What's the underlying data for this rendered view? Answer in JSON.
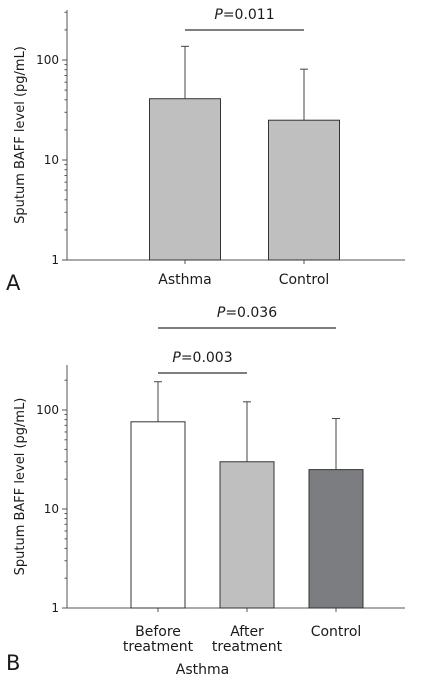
{
  "chart_data": [
    {
      "type": "bar",
      "panel_label": "A",
      "ylabel": "Sputum BAFF level (pg/mL)",
      "yscale": "log",
      "ylim": [
        1,
        400
      ],
      "yticks": [
        "1",
        "10",
        "100"
      ],
      "categories": [
        "Asthma",
        "Control"
      ],
      "values": [
        41,
        25
      ],
      "error_upper": [
        137,
        81
      ],
      "colors": [
        "#bfbfbf",
        "#bfbfbf"
      ],
      "significance": [
        {
          "from": 0,
          "to": 1,
          "label_p": "P",
          "label_rest": "=0.011"
        }
      ]
    },
    {
      "type": "bar",
      "panel_label": "B",
      "ylabel": "Sputum BAFF level (pg/mL)",
      "yscale": "log",
      "ylim": [
        1,
        400
      ],
      "yticks": [
        "1",
        "10",
        "100"
      ],
      "categories": [
        {
          "lines": [
            "Before",
            "treatment"
          ]
        },
        {
          "lines": [
            "After",
            "treatment"
          ]
        },
        {
          "lines": [
            "Control"
          ]
        }
      ],
      "group_label": "Asthma",
      "values": [
        76,
        30,
        25
      ],
      "error_upper": [
        193,
        121,
        82
      ],
      "colors": [
        "#ffffff",
        "#bfbfbf",
        "#7b7d80"
      ],
      "significance": [
        {
          "from": 0,
          "to": 1,
          "label_p": "P",
          "label_rest": "=0.003"
        },
        {
          "from": 0,
          "to": 2,
          "label_p": "P",
          "label_rest": "=0.036"
        }
      ]
    }
  ]
}
